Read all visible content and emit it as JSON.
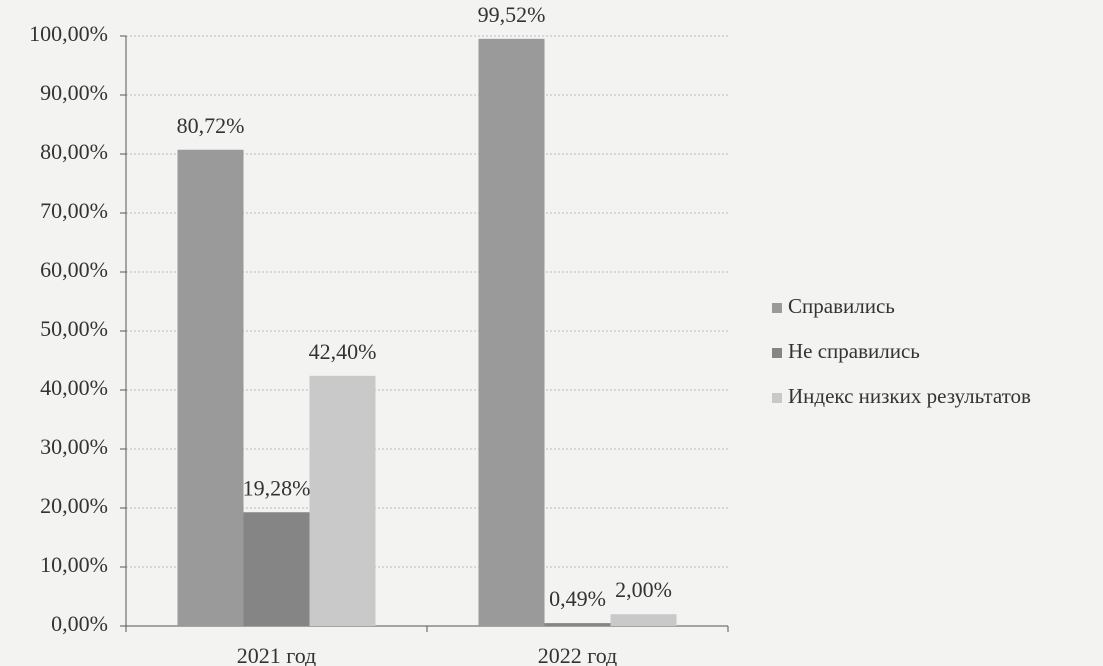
{
  "chart_data": {
    "type": "bar",
    "categories": [
      "2021 год",
      "2022 год"
    ],
    "series": [
      {
        "name": "Справились",
        "color": "#9a9a9a",
        "values": [
          80.72,
          99.52
        ],
        "value_labels": [
          "80,72%",
          "99,52%"
        ]
      },
      {
        "name": "Не справились",
        "color": "#858585",
        "values": [
          19.28,
          0.49
        ],
        "value_labels": [
          "19,28%",
          "0,49%"
        ]
      },
      {
        "name": "Индекс низких результатов",
        "color": "#c9c9c9",
        "values": [
          42.4,
          2.0
        ],
        "value_labels": [
          "42,40%",
          "2,00%"
        ]
      }
    ],
    "ylim": [
      0,
      100
    ],
    "yticks": [
      {
        "value": 0,
        "label": "0,00%"
      },
      {
        "value": 10,
        "label": "10,00%"
      },
      {
        "value": 20,
        "label": "20,00%"
      },
      {
        "value": 30,
        "label": "30,00%"
      },
      {
        "value": 40,
        "label": "40,00%"
      },
      {
        "value": 50,
        "label": "50,00%"
      },
      {
        "value": 60,
        "label": "60,00%"
      },
      {
        "value": 70,
        "label": "70,00%"
      },
      {
        "value": 80,
        "label": "80,00%"
      },
      {
        "value": 90,
        "label": "90,00%"
      },
      {
        "value": 100,
        "label": "100,00%"
      }
    ],
    "grid": true,
    "legend": "right"
  }
}
